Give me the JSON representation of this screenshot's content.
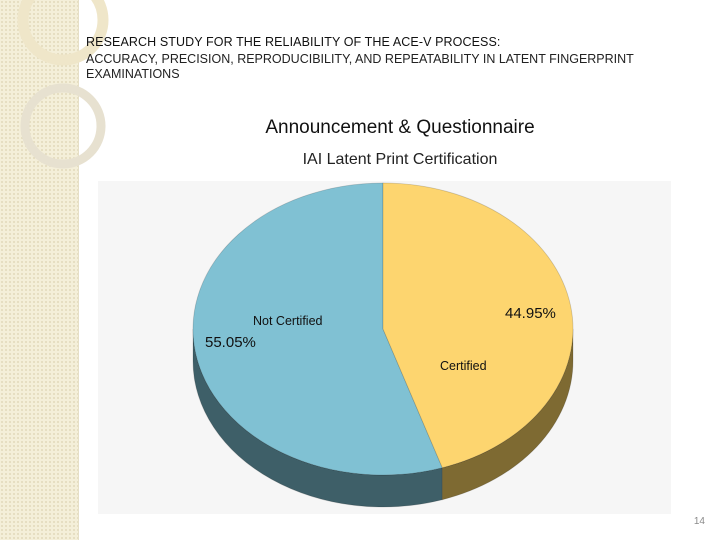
{
  "header": {
    "title": "RESEARCH STUDY FOR THE RELIABILITY OF THE ACE-V PROCESS:",
    "subtitle": "ACCURACY, PRECISION, REPRODUCIBILITY, AND REPEATABILITY IN LATENT FINGERPRINT EXAMINATIONS"
  },
  "slide_heading": "Announcement & Questionnaire",
  "page_number": "14",
  "colors": {
    "certified": "#fdd56f",
    "certified_side": "#7e6a32",
    "not_certified": "#80c1d3",
    "not_certified_side": "#3e5f68"
  },
  "chart_data": {
    "type": "pie",
    "title": "IAI Latent Print Certification",
    "slices": [
      {
        "label": "Certified",
        "value": 44.95,
        "value_label": "44.95%"
      },
      {
        "label": "Not Certified",
        "value": 55.05,
        "value_label": "55.05%"
      }
    ],
    "three_d": true
  }
}
